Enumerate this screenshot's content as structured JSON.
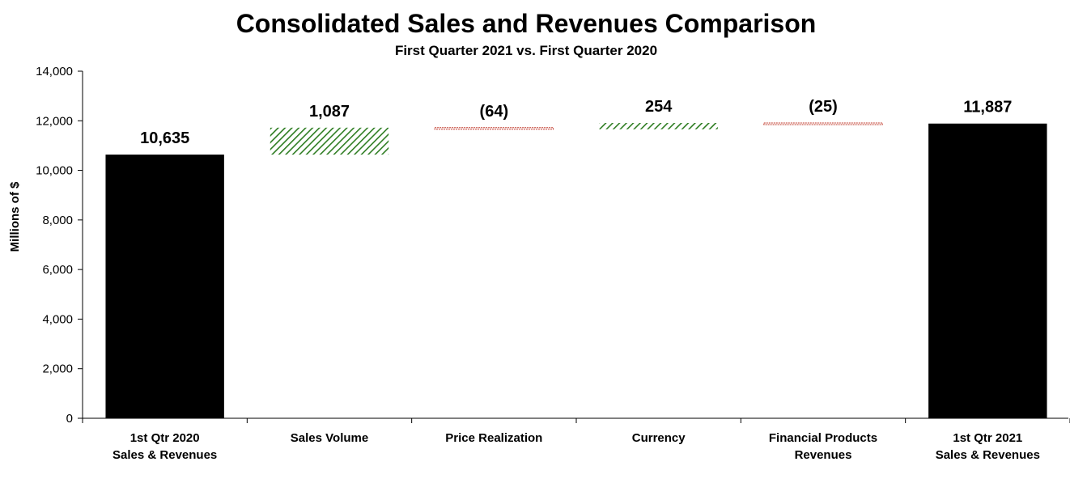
{
  "chart_data": {
    "type": "waterfall",
    "title": "Consolidated Sales and Revenues Comparison",
    "subtitle": "First Quarter 2021 vs. First Quarter 2020",
    "ylabel": "Millions of $",
    "xlabel": "",
    "ylim": [
      0,
      14000
    ],
    "ytick_step": 2000,
    "yticks": [
      "0",
      "2,000",
      "4,000",
      "6,000",
      "8,000",
      "10,000",
      "12,000",
      "14,000"
    ],
    "grid": false,
    "categories": [
      [
        "1st Qtr 2020",
        "Sales & Revenues"
      ],
      [
        "Sales Volume"
      ],
      [
        "Price Realization"
      ],
      [
        "Currency"
      ],
      [
        "Financial Products",
        "Revenues"
      ],
      [
        "1st Qtr 2021",
        "Sales & Revenues"
      ]
    ],
    "values": [
      10635,
      1087,
      -64,
      254,
      -25,
      11887
    ],
    "kinds": [
      "total",
      "increase",
      "decrease",
      "increase",
      "decrease",
      "total"
    ],
    "labels": [
      "10,635",
      "1,087",
      "(64)",
      "254",
      "(25)",
      "11,887"
    ],
    "colors": {
      "total": "#000000",
      "increase": "#2e7d22",
      "decrease": "#c0392b",
      "axis": "#000000"
    }
  }
}
